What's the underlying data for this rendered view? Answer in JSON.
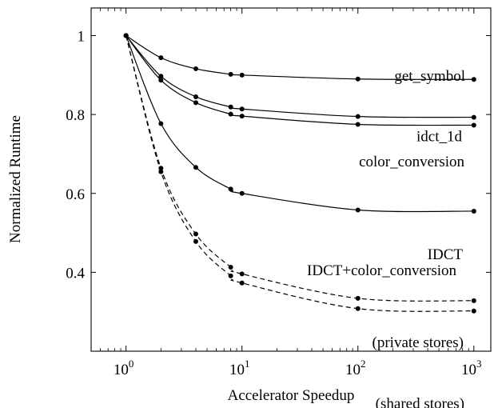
{
  "chart_data": {
    "type": "line",
    "xlabel": "Accelerator Speedup",
    "ylabel": "Normalized Runtime",
    "xscale": "log",
    "xlim": [
      0.5,
      1400
    ],
    "ylim": [
      0.2,
      1.07
    ],
    "yticks": [
      {
        "value": 0.4,
        "label": "0.4"
      },
      {
        "value": 0.6,
        "label": "0.6"
      },
      {
        "value": 0.8,
        "label": "0.8"
      },
      {
        "value": 1.0,
        "label": "1"
      }
    ],
    "xticks": [
      {
        "value": 1,
        "base": "10",
        "exp": "0"
      },
      {
        "value": 10,
        "base": "10",
        "exp": "1"
      },
      {
        "value": 100,
        "base": "10",
        "exp": "2"
      },
      {
        "value": 1000,
        "base": "10",
        "exp": "3"
      }
    ],
    "grid": false,
    "series": [
      {
        "label": "get_symbol",
        "style": "solid",
        "x": [
          1,
          2,
          4,
          8,
          10,
          100,
          1000
        ],
        "y": [
          1.0,
          0.944,
          0.916,
          0.902,
          0.9,
          0.89,
          0.889
        ]
      },
      {
        "label": "idct_1d",
        "style": "solid",
        "x": [
          1,
          2,
          4,
          8,
          10,
          100,
          1000
        ],
        "y": [
          1.0,
          0.897,
          0.845,
          0.819,
          0.814,
          0.795,
          0.793
        ]
      },
      {
        "label": "color_conversion",
        "style": "solid",
        "x": [
          1,
          2,
          4,
          8,
          10,
          100,
          1000
        ],
        "y": [
          1.0,
          0.887,
          0.83,
          0.801,
          0.796,
          0.775,
          0.773
        ]
      },
      {
        "label": "IDCT",
        "style": "solid",
        "x": [
          1,
          2,
          4,
          8,
          10,
          100,
          1000
        ],
        "y": [
          1.0,
          0.777,
          0.666,
          0.611,
          0.6,
          0.558,
          0.555
        ]
      },
      {
        "label": "(private stores)",
        "style": "dashed",
        "x": [
          1,
          2,
          4,
          8,
          10,
          100,
          1000
        ],
        "y": [
          1.0,
          0.664,
          0.497,
          0.413,
          0.396,
          0.334,
          0.328
        ]
      },
      {
        "label": "(shared stores)",
        "style": "dashed",
        "x": [
          1,
          2,
          4,
          8,
          10,
          100,
          1000
        ],
        "y": [
          1.0,
          0.655,
          0.478,
          0.391,
          0.373,
          0.308,
          0.302
        ]
      }
    ],
    "annotations": [
      {
        "text": "IDCT+color_conversion"
      }
    ]
  }
}
